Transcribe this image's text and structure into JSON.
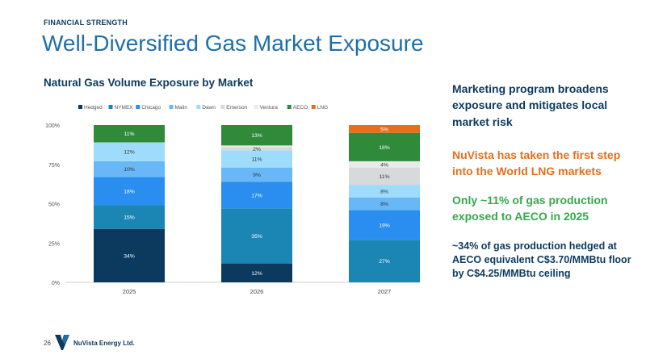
{
  "header": {
    "eyebrow": "FINANCIAL STRENGTH",
    "title": "Well-Diversified Gas Market Exposure"
  },
  "chart_title": "Natural Gas Volume Exposure by Market",
  "callouts": [
    "Marketing program broadens exposure and mitigates local market risk",
    "NuVista has taken the first step into the World LNG markets",
    "Only ~11% of gas production exposed to AECO in 2025",
    "~34% of gas production hedged at AECO equivalent C$3.70/MMBtu floor by C$4.25/MMBtu ceiling"
  ],
  "footer": {
    "page_number": "26",
    "company": "NuVista Energy Ltd."
  },
  "colors": {
    "Hedged": "#0b3a5e",
    "NYMEX": "#1b86b4",
    "Chicago": "#2a8df0",
    "Malin": "#68b8f8",
    "Dawn": "#9fdcfb",
    "Emerson": "#d8d9db",
    "Ventura": "#eaeaea",
    "AECO": "#2f8a3a",
    "LNG": "#e46f1c"
  },
  "chart_data": {
    "type": "bar",
    "stacked": true,
    "title": "Natural Gas Volume Exposure by Market",
    "categories": [
      "2025",
      "2026",
      "2027"
    ],
    "ylim": [
      0,
      100
    ],
    "yticks": [
      "0%",
      "25%",
      "50%",
      "75%",
      "100%"
    ],
    "legend_position": "top-left",
    "series": [
      {
        "name": "Hedged",
        "values": [
          34,
          12,
          0
        ],
        "labels": [
          "34%",
          "12%",
          ""
        ]
      },
      {
        "name": "NYMEX",
        "values": [
          15,
          35,
          27
        ],
        "labels": [
          "15%",
          "35%",
          "27%"
        ]
      },
      {
        "name": "Chicago",
        "values": [
          18,
          17,
          19
        ],
        "labels": [
          "18%",
          "17%",
          "19%"
        ]
      },
      {
        "name": "Malin",
        "values": [
          10,
          9,
          8
        ],
        "labels": [
          "10%",
          "9%",
          "8%"
        ]
      },
      {
        "name": "Dawn",
        "values": [
          12,
          11,
          8
        ],
        "labels": [
          "12%",
          "11%",
          "8%"
        ]
      },
      {
        "name": "Emerson",
        "values": [
          0,
          2,
          11
        ],
        "labels": [
          "",
          "2%",
          "11%"
        ]
      },
      {
        "name": "Ventura",
        "values": [
          0,
          1,
          4
        ],
        "labels": [
          "",
          "",
          "4%"
        ]
      },
      {
        "name": "AECO",
        "values": [
          11,
          13,
          18
        ],
        "labels": [
          "11%",
          "13%",
          "18%"
        ]
      },
      {
        "name": "LNG",
        "values": [
          0,
          0,
          5
        ],
        "labels": [
          "",
          "",
          "5%"
        ]
      }
    ]
  }
}
